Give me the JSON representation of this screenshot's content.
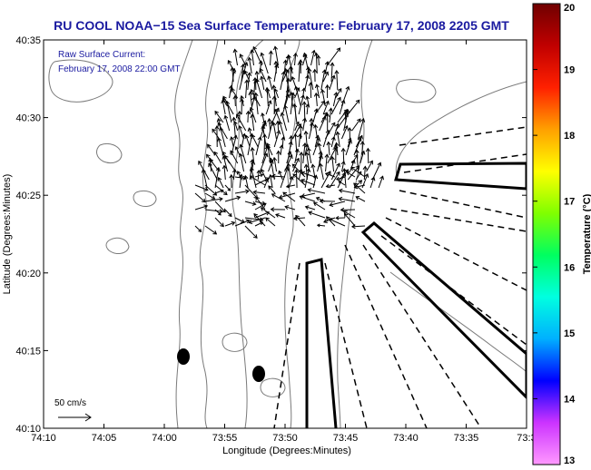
{
  "chart_data": {
    "type": "other",
    "title": "RU COOL  NOAA−15  Sea Surface Temperature:  February 17, 2008 2205 GMT",
    "xlabel": "Longitude (Degrees:Minutes)",
    "ylabel": "Latitude (Degrees:Minutes)",
    "x_ticks": [
      "74:10",
      "74:05",
      "74:00",
      "73:55",
      "73:50",
      "73:45",
      "73:40",
      "73:35",
      "73:3"
    ],
    "y_ticks": [
      "40:10",
      "40:15",
      "40:20",
      "40:25",
      "40:30",
      "40:35"
    ],
    "xlim": [
      74.1667,
      73.5
    ],
    "ylim": [
      40.1667,
      40.5833
    ],
    "annotation_lines": [
      "Raw Surface Current:",
      "February 17, 2008 22:00 GMT"
    ],
    "scale_label": "50 cm/s",
    "colorbar": {
      "label": "Temperature (°C)",
      "ticks": [
        "13",
        "14",
        "15",
        "16",
        "17",
        "18",
        "19",
        "20"
      ],
      "range": [
        13,
        20
      ],
      "colors": [
        "#ff99ff",
        "#cc33ff",
        "#0000ff",
        "#00b0ff",
        "#00ffe0",
        "#00ff60",
        "#80ff00",
        "#ffff00",
        "#ffa000",
        "#ff2000",
        "#c00000",
        "#700000"
      ]
    },
    "colors": {
      "title": "#1a1aa0",
      "contour": "#7a7a7a",
      "vector": "#000000"
    }
  }
}
